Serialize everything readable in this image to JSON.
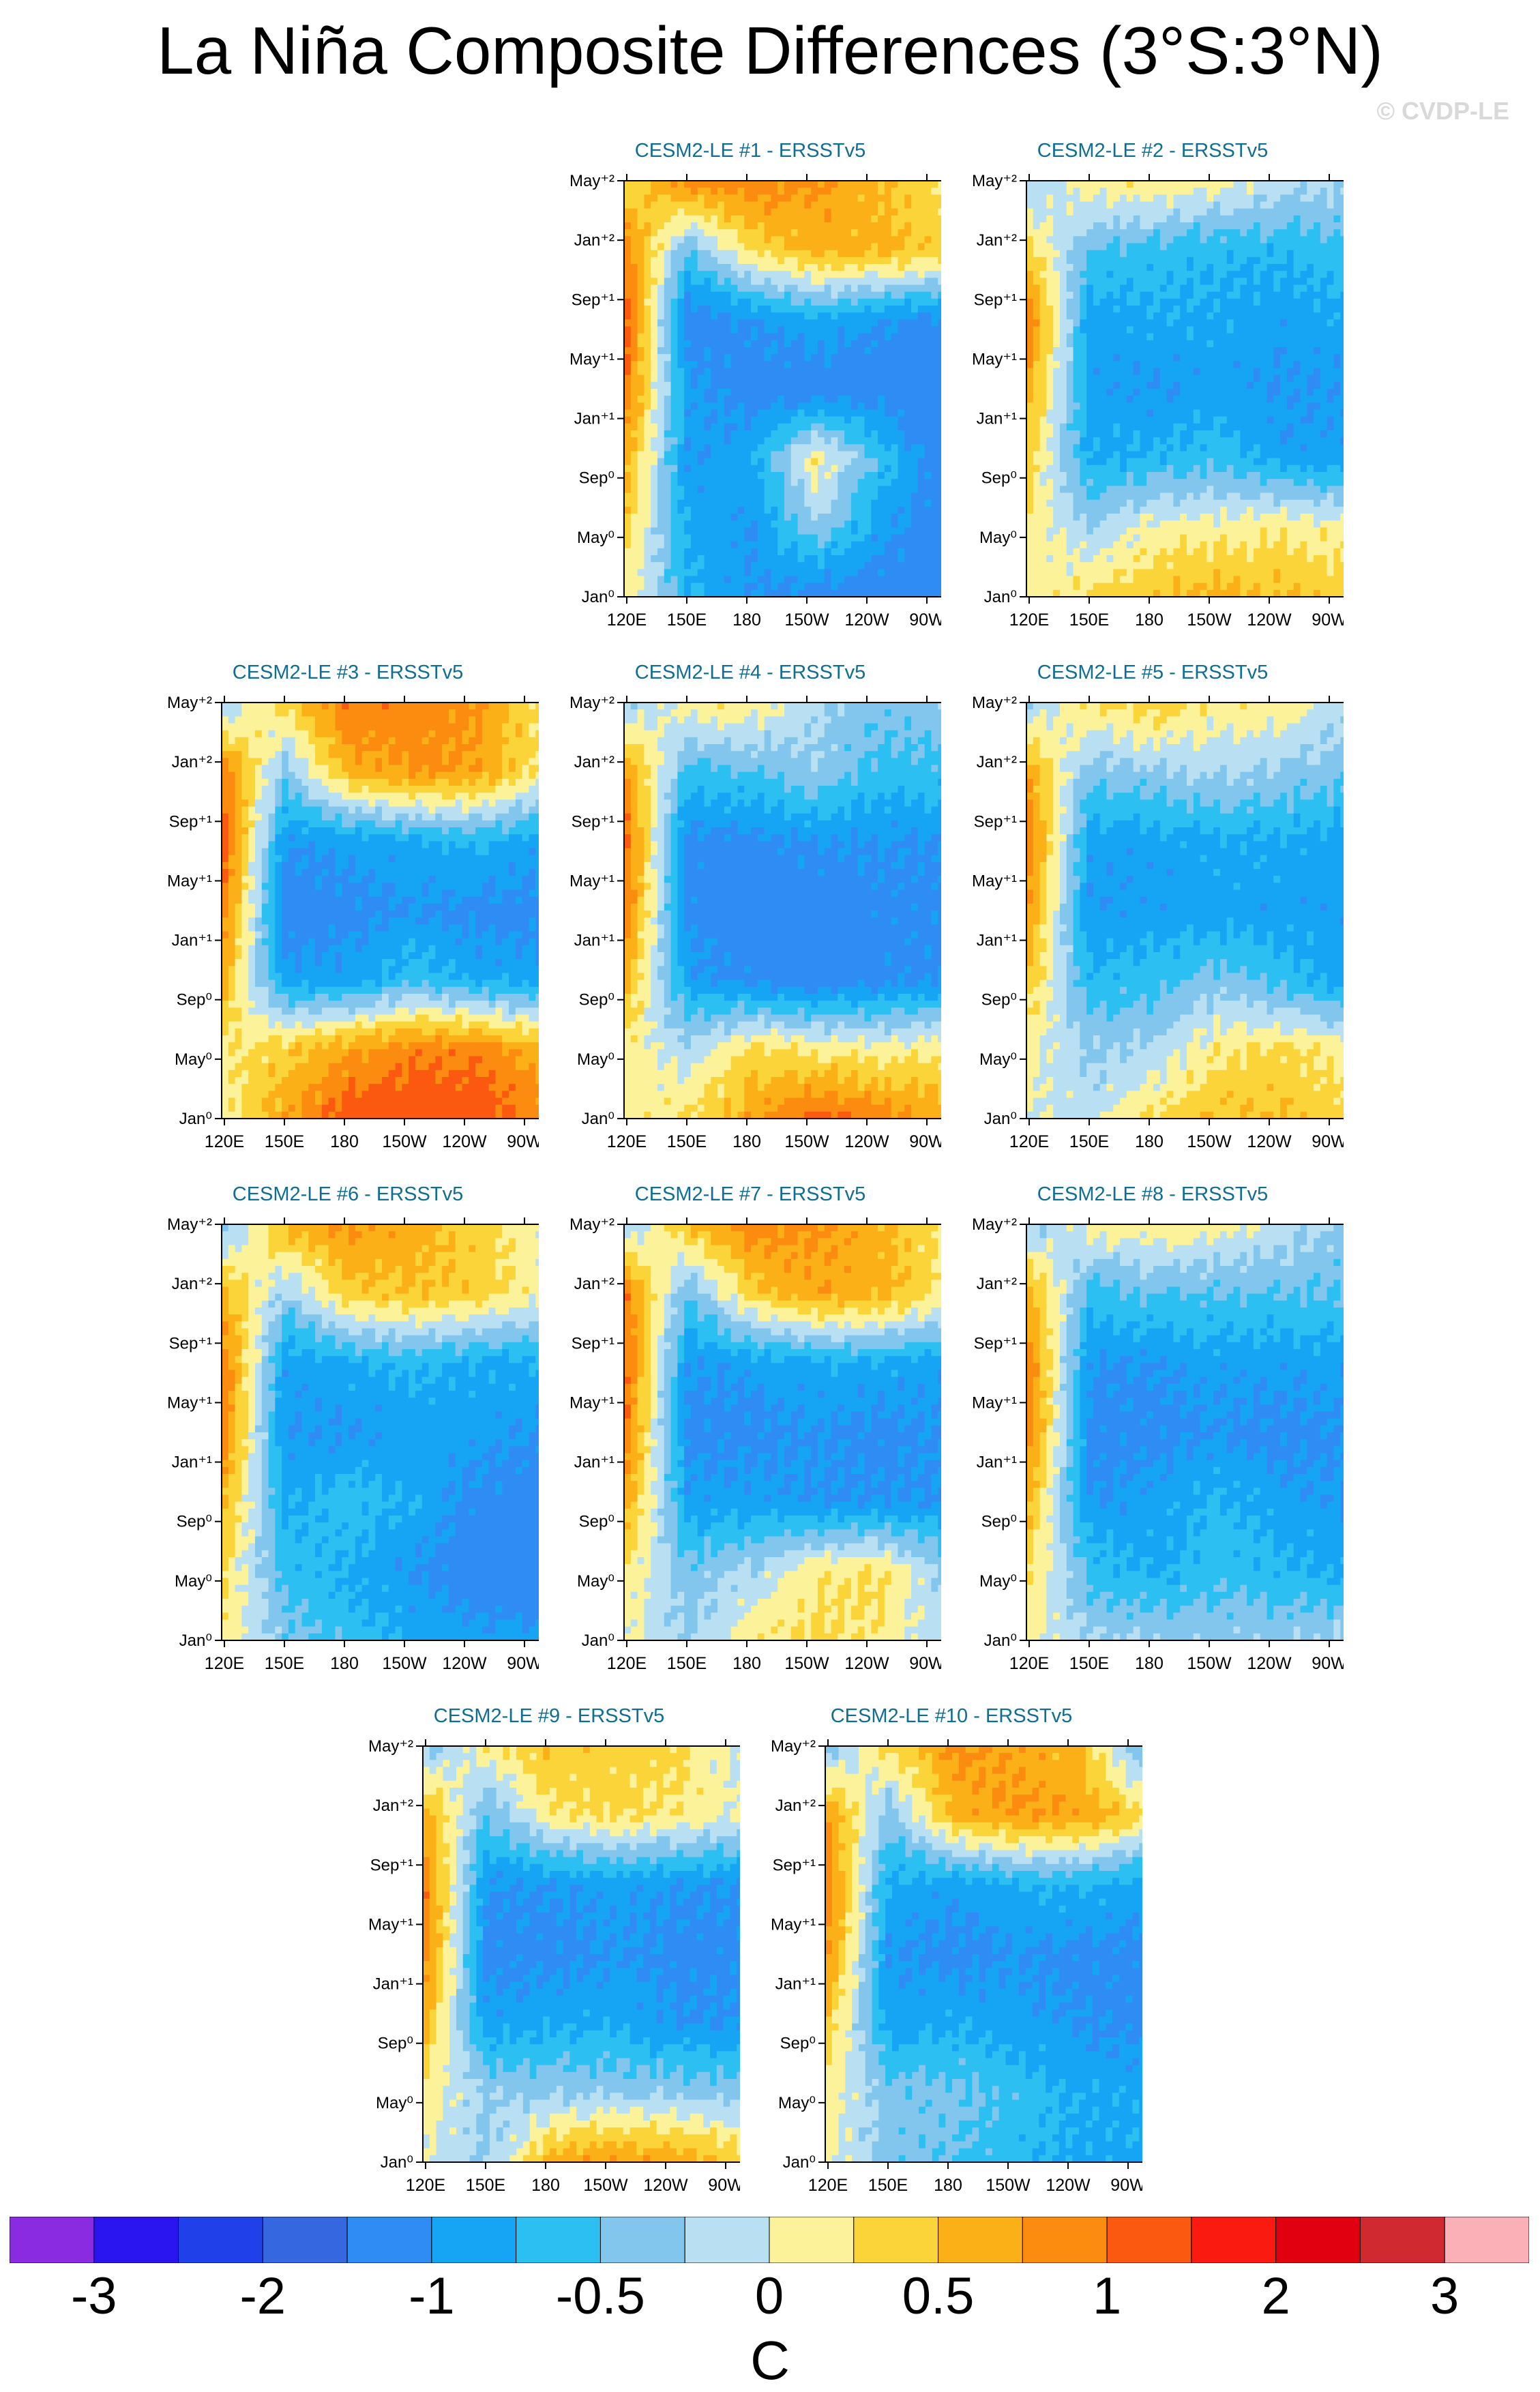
{
  "title": "La Niña Composite Differences (3°S:3°N)",
  "credit": "© CVDP-LE",
  "units": "C",
  "chart_data": {
    "type": "heatmap",
    "x_ticks": [
      "120E",
      "150E",
      "180",
      "150W",
      "120W",
      "90W"
    ],
    "y_ticks": [
      "Jan⁰",
      "May⁰",
      "Sep⁰",
      "Jan⁺¹",
      "May⁺¹",
      "Sep⁺¹",
      "Jan⁺²",
      "May⁺²"
    ],
    "colorbar": {
      "labels": [
        "-3",
        "-2",
        "-1",
        "-0.5",
        "0",
        "0.5",
        "1",
        "2",
        "3"
      ],
      "colors": [
        "#8a2be2",
        "#2a15f0",
        "#2040ea",
        "#3568e0",
        "#2f8cf5",
        "#16a5f5",
        "#2cc0f2",
        "#82c6ee",
        "#b8e0f2",
        "#fbf29a",
        "#fbd43a",
        "#fbb017",
        "#fb8c10",
        "#fb5810",
        "#fb1a10",
        "#e00010",
        "#d02a30",
        "#fbb0b8"
      ]
    },
    "panels": [
      {
        "name": "CESM2-LE #1 - ERSSTv5",
        "pattern": [
          [
            0.2,
            0.9,
            0.9,
            0.8,
            0.5,
            0.2
          ],
          [
            1.0,
            -0.5,
            0.3,
            0.6,
            0.6,
            0.4
          ],
          [
            1.2,
            -1.2,
            -1.0,
            -0.8,
            -1.0,
            -1.1
          ],
          [
            1.0,
            -0.9,
            -1.2,
            -1.2,
            -1.2,
            -1.4
          ],
          [
            0.7,
            -1.0,
            -0.8,
            0.2,
            -0.6,
            -1.2
          ],
          [
            0.4,
            -0.8,
            -1.0,
            -0.3,
            -0.9,
            -1.2
          ],
          [
            0.2,
            -0.7,
            -1.0,
            -1.2,
            -1.2,
            -1.2
          ]
        ]
      },
      {
        "name": "CESM2-LE #2 - ERSSTv5",
        "pattern": [
          [
            -0.3,
            0.2,
            0.2,
            0.1,
            -0.1,
            -0.2
          ],
          [
            0.4,
            -0.5,
            -0.6,
            -0.7,
            -0.7,
            -0.6
          ],
          [
            1.0,
            -0.9,
            -0.8,
            -0.8,
            -0.9,
            -0.8
          ],
          [
            0.7,
            -0.9,
            -1.0,
            -0.9,
            -1.0,
            -1.0
          ],
          [
            0.4,
            -0.8,
            -0.7,
            -0.6,
            -0.9,
            -0.9
          ],
          [
            0.2,
            -0.3,
            0.1,
            0.1,
            0.2,
            0.1
          ],
          [
            0.1,
            0.3,
            0.5,
            0.6,
            0.5,
            0.4
          ]
        ]
      },
      {
        "name": "CESM2-LE #3 - ERSSTv5",
        "pattern": [
          [
            -0.3,
            0.4,
            1.0,
            0.9,
            0.8,
            0.2
          ],
          [
            1.0,
            -0.4,
            0.6,
            0.8,
            0.7,
            0.2
          ],
          [
            1.2,
            -1.0,
            -0.9,
            -0.8,
            -0.7,
            -0.9
          ],
          [
            1.0,
            -1.2,
            -1.1,
            -1.0,
            -1.1,
            -1.1
          ],
          [
            0.6,
            -0.9,
            -0.9,
            -0.6,
            -0.8,
            -0.9
          ],
          [
            0.2,
            0.4,
            0.7,
            0.9,
            0.9,
            0.6
          ],
          [
            0.1,
            0.7,
            1.2,
            1.3,
            1.2,
            0.9
          ]
        ]
      },
      {
        "name": "CESM2-LE #4 - ERSSTv5",
        "pattern": [
          [
            -0.3,
            0.2,
            0.2,
            -0.2,
            -0.4,
            -0.3
          ],
          [
            0.8,
            -0.6,
            -0.5,
            -0.3,
            -0.6,
            -0.6
          ],
          [
            1.1,
            -1.1,
            -1.1,
            -1.0,
            -1.0,
            -1.0
          ],
          [
            1.0,
            -1.1,
            -1.2,
            -1.2,
            -1.1,
            -1.1
          ],
          [
            0.6,
            -0.9,
            -1.1,
            -1.2,
            -1.1,
            -1.0
          ],
          [
            0.2,
            -0.2,
            0.3,
            0.2,
            0.1,
            0.2
          ],
          [
            0.1,
            0.3,
            0.7,
            1.1,
            0.9,
            0.7
          ]
        ]
      },
      {
        "name": "CESM2-LE #5 - ERSSTv5",
        "pattern": [
          [
            -0.3,
            0.3,
            0.4,
            0.2,
            0.2,
            -0.2
          ],
          [
            0.7,
            -0.4,
            -0.3,
            -0.2,
            -0.3,
            -0.4
          ],
          [
            1.0,
            -0.9,
            -0.9,
            -0.8,
            -0.8,
            -0.9
          ],
          [
            0.8,
            -1.0,
            -0.9,
            -0.9,
            -0.9,
            -0.9
          ],
          [
            0.5,
            -0.7,
            -0.6,
            -0.4,
            -0.6,
            -0.9
          ],
          [
            0.1,
            -0.3,
            -0.2,
            0.2,
            0.3,
            0.1
          ],
          [
            0.0,
            -0.1,
            0.3,
            0.5,
            0.5,
            0.4
          ]
        ]
      },
      {
        "name": "CESM2-LE #6 - ERSSTv5",
        "pattern": [
          [
            -0.4,
            0.6,
            0.8,
            0.6,
            0.4,
            0.0
          ],
          [
            0.6,
            -0.3,
            0.4,
            0.5,
            0.4,
            0.1
          ],
          [
            1.0,
            -0.9,
            -0.8,
            -0.7,
            -0.8,
            -0.8
          ],
          [
            1.0,
            -1.0,
            -1.0,
            -0.9,
            -0.9,
            -1.0
          ],
          [
            0.6,
            -0.8,
            -0.6,
            -0.8,
            -1.1,
            -1.2
          ],
          [
            0.3,
            -0.6,
            -0.8,
            -1.0,
            -1.2,
            -1.4
          ],
          [
            0.2,
            -0.4,
            -0.6,
            -0.8,
            -0.9,
            -0.9
          ]
        ]
      },
      {
        "name": "CESM2-LE #7 - ERSSTv5",
        "pattern": [
          [
            -0.3,
            0.5,
            0.9,
            0.8,
            0.6,
            0.2
          ],
          [
            1.0,
            -0.5,
            0.4,
            0.7,
            0.6,
            0.2
          ],
          [
            1.1,
            -1.0,
            -0.9,
            -0.8,
            -0.8,
            -0.9
          ],
          [
            1.0,
            -1.1,
            -1.1,
            -1.0,
            -1.1,
            -1.0
          ],
          [
            0.7,
            -0.9,
            -0.9,
            -1.0,
            -1.0,
            -1.0
          ],
          [
            0.2,
            -0.4,
            -0.2,
            0.2,
            0.3,
            -0.3
          ],
          [
            0.1,
            -0.3,
            0.2,
            0.3,
            0.2,
            -0.2
          ]
        ]
      },
      {
        "name": "CESM2-LE #8 - ERSSTv5",
        "pattern": [
          [
            -0.4,
            0.1,
            0.2,
            0.1,
            -0.1,
            -0.3
          ],
          [
            0.7,
            -0.6,
            -0.5,
            -0.5,
            -0.5,
            -0.5
          ],
          [
            1.0,
            -1.0,
            -1.0,
            -0.9,
            -0.9,
            -0.9
          ],
          [
            1.0,
            -1.1,
            -1.1,
            -1.0,
            -1.1,
            -1.0
          ],
          [
            0.6,
            -1.0,
            -0.9,
            -0.7,
            -0.9,
            -1.0
          ],
          [
            0.3,
            -0.6,
            -0.8,
            -0.6,
            -0.7,
            -0.8
          ],
          [
            0.1,
            -0.2,
            -0.3,
            -0.3,
            -0.3,
            -0.2
          ]
        ]
      },
      {
        "name": "CESM2-LE #9 - ERSSTv5",
        "pattern": [
          [
            -0.4,
            0.2,
            0.5,
            0.4,
            0.3,
            -0.1
          ],
          [
            0.7,
            -0.5,
            0.2,
            0.3,
            0.2,
            0.0
          ],
          [
            1.0,
            -1.0,
            -1.0,
            -0.9,
            -1.0,
            -1.0
          ],
          [
            1.0,
            -1.1,
            -1.1,
            -1.0,
            -1.1,
            -1.1
          ],
          [
            0.6,
            -0.9,
            -0.8,
            -0.8,
            -1.0,
            -1.0
          ],
          [
            0.2,
            -0.3,
            -0.3,
            -0.3,
            -0.3,
            -0.4
          ],
          [
            0.0,
            -0.3,
            0.6,
            0.8,
            0.7,
            0.4
          ]
        ]
      },
      {
        "name": "CESM2-LE #10 - ERSSTv5",
        "pattern": [
          [
            -0.4,
            0.3,
            0.8,
            0.7,
            0.5,
            -0.6
          ],
          [
            0.8,
            -0.4,
            0.6,
            0.8,
            0.7,
            0.3
          ],
          [
            1.0,
            -0.8,
            -0.9,
            -0.8,
            -0.7,
            -0.9
          ],
          [
            0.9,
            -1.0,
            -1.1,
            -1.0,
            -1.1,
            -1.1
          ],
          [
            0.5,
            -0.9,
            -0.8,
            -0.9,
            -1.0,
            -1.1
          ],
          [
            0.2,
            -0.4,
            -0.4,
            -0.6,
            -0.8,
            -0.8
          ],
          [
            0.1,
            -0.4,
            -0.5,
            -0.7,
            -0.8,
            -0.8
          ]
        ]
      }
    ]
  }
}
